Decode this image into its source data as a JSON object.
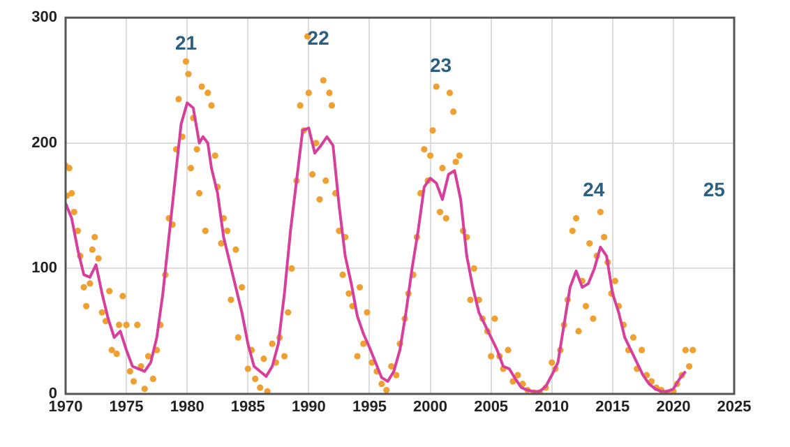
{
  "chart_data": {
    "type": "line",
    "xlim": [
      1970,
      2025
    ],
    "xticks": [
      1970,
      1975,
      1980,
      1985,
      1990,
      1995,
      2000,
      2005,
      2010,
      2015,
      2020,
      2025
    ],
    "ylim": [
      0,
      300
    ],
    "yticks": [
      0,
      100,
      200,
      300
    ],
    "grid": true,
    "legend": false,
    "annotations": [
      "21",
      "22",
      "23",
      "24",
      "25"
    ],
    "series": [
      {
        "type": "scatter",
        "marker": "circle",
        "color": "#f0a030",
        "x": [
          1970.0,
          1970.1,
          1970.3,
          1970.5,
          1970.7,
          1971.0,
          1971.2,
          1971.5,
          1971.7,
          1972.0,
          1972.2,
          1972.4,
          1972.7,
          1973.0,
          1973.3,
          1973.6,
          1973.8,
          1974.2,
          1974.4,
          1974.7,
          1975.0,
          1975.3,
          1975.6,
          1975.9,
          1976.2,
          1976.5,
          1976.8,
          1977.2,
          1977.5,
          1977.8,
          1978.2,
          1978.5,
          1978.8,
          1979.1,
          1979.3,
          1979.6,
          1979.9,
          1980.1,
          1980.3,
          1980.5,
          1980.8,
          1981.0,
          1981.2,
          1981.5,
          1981.7,
          1982.0,
          1982.3,
          1982.5,
          1982.8,
          1983.0,
          1983.3,
          1983.6,
          1984.0,
          1984.2,
          1984.5,
          1985.0,
          1985.3,
          1985.6,
          1986.0,
          1986.3,
          1986.6,
          1987.0,
          1987.3,
          1987.6,
          1988.0,
          1988.3,
          1988.6,
          1989.0,
          1989.3,
          1989.6,
          1989.9,
          1990.0,
          1990.3,
          1990.6,
          1990.9,
          1991.2,
          1991.4,
          1991.7,
          1991.9,
          1992.2,
          1992.5,
          1992.8,
          1993.0,
          1993.3,
          1993.6,
          1994.0,
          1994.2,
          1994.5,
          1994.8,
          1995.2,
          1995.6,
          1996.0,
          1996.4,
          1996.8,
          1997.2,
          1997.5,
          1997.9,
          1998.2,
          1998.6,
          1998.9,
          1999.2,
          1999.5,
          1999.8,
          2000.0,
          2000.2,
          2000.5,
          2000.8,
          2001.0,
          2001.3,
          2001.6,
          2001.9,
          2002.1,
          2002.4,
          2002.7,
          2003.0,
          2003.3,
          2003.6,
          2004.0,
          2004.3,
          2004.7,
          2005.0,
          2005.3,
          2005.7,
          2006.0,
          2006.4,
          2006.8,
          2007.2,
          2007.6,
          2008.0,
          2008.5,
          2009.0,
          2009.5,
          2010.0,
          2010.3,
          2010.7,
          2011.0,
          2011.3,
          2011.7,
          2012.0,
          2012.2,
          2012.5,
          2012.8,
          2013.1,
          2013.4,
          2013.7,
          2014.0,
          2014.3,
          2014.6,
          2014.9,
          2015.2,
          2015.5,
          2015.9,
          2016.3,
          2016.7,
          2017.0,
          2017.4,
          2017.8,
          2018.2,
          2018.6,
          2019.0,
          2019.5,
          2020.0,
          2020.3,
          2020.7,
          2021.0,
          2021.3,
          2021.6
        ],
        "values": [
          182,
          158,
          180,
          160,
          145,
          130,
          110,
          85,
          70,
          88,
          115,
          125,
          108,
          65,
          58,
          82,
          35,
          32,
          55,
          78,
          55,
          18,
          10,
          55,
          22,
          4,
          30,
          12,
          35,
          55,
          95,
          140,
          135,
          195,
          235,
          205,
          265,
          255,
          180,
          220,
          195,
          160,
          245,
          130,
          240,
          230,
          190,
          165,
          120,
          140,
          130,
          75,
          115,
          45,
          85,
          20,
          35,
          12,
          5,
          28,
          2,
          40,
          25,
          45,
          30,
          65,
          100,
          170,
          230,
          210,
          285,
          240,
          175,
          200,
          155,
          250,
          170,
          240,
          230,
          160,
          130,
          95,
          125,
          80,
          70,
          30,
          85,
          40,
          65,
          25,
          18,
          8,
          3,
          22,
          15,
          40,
          60,
          80,
          95,
          125,
          160,
          195,
          170,
          190,
          210,
          245,
          145,
          180,
          140,
          240,
          225,
          185,
          190,
          130,
          125,
          75,
          100,
          75,
          60,
          50,
          30,
          60,
          30,
          20,
          35,
          10,
          15,
          8,
          3,
          1,
          1,
          5,
          25,
          20,
          35,
          55,
          75,
          130,
          140,
          50,
          90,
          70,
          120,
          60,
          110,
          145,
          125,
          105,
          80,
          90,
          70,
          55,
          35,
          45,
          20,
          35,
          15,
          10,
          5,
          3,
          1,
          2,
          8,
          15,
          35,
          22,
          35
        ]
      },
      {
        "type": "line",
        "marker": "none",
        "color": "#d63f9c",
        "x": [
          1970,
          1970.5,
          1971,
          1971.5,
          1972,
          1972.5,
          1973,
          1973.5,
          1974,
          1974.5,
          1975,
          1975.5,
          1976,
          1976.5,
          1977,
          1977.5,
          1978,
          1978.5,
          1979,
          1979.5,
          1980,
          1980.5,
          1981,
          1981.3,
          1981.7,
          1982,
          1982.5,
          1983,
          1983.5,
          1984,
          1984.5,
          1985,
          1985.5,
          1986,
          1986.5,
          1987,
          1987.5,
          1988,
          1988.5,
          1989,
          1989.5,
          1990,
          1990.5,
          1991,
          1991.5,
          1992,
          1992.5,
          1993,
          1993.5,
          1994,
          1994.5,
          1995,
          1995.5,
          1996,
          1996.5,
          1997,
          1997.5,
          1998,
          1998.5,
          1999,
          1999.5,
          2000,
          2000.5,
          2001,
          2001.5,
          2002,
          2002.5,
          2003,
          2003.5,
          2004,
          2004.5,
          2005,
          2005.5,
          2006,
          2006.5,
          2007,
          2007.5,
          2008,
          2008.5,
          2009,
          2009.5,
          2010,
          2010.5,
          2011,
          2011.5,
          2012,
          2012.5,
          2013,
          2013.5,
          2014,
          2014.5,
          2015,
          2015.5,
          2016,
          2016.5,
          2017,
          2017.5,
          2018,
          2018.5,
          2019,
          2019.5,
          2020,
          2020.5,
          2021
        ],
        "values": [
          152,
          140,
          115,
          95,
          93,
          103,
          80,
          60,
          45,
          50,
          35,
          22,
          20,
          18,
          25,
          45,
          80,
          125,
          170,
          215,
          232,
          228,
          200,
          205,
          200,
          180,
          160,
          125,
          105,
          85,
          65,
          40,
          22,
          18,
          14,
          22,
          40,
          80,
          130,
          170,
          210,
          212,
          192,
          198,
          205,
          198,
          150,
          110,
          88,
          62,
          48,
          37,
          25,
          13,
          10,
          18,
          35,
          65,
          100,
          130,
          165,
          172,
          168,
          155,
          175,
          178,
          155,
          110,
          85,
          65,
          55,
          45,
          35,
          22,
          20,
          12,
          5,
          3,
          2,
          2,
          6,
          15,
          25,
          55,
          85,
          98,
          85,
          88,
          100,
          117,
          110,
          80,
          65,
          45,
          35,
          25,
          15,
          8,
          4,
          2,
          2,
          4,
          12,
          18
        ]
      }
    ]
  }
}
